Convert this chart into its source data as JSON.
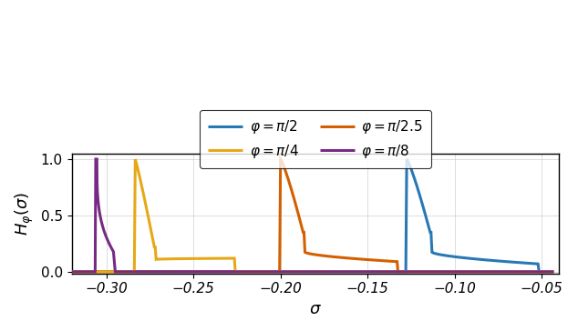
{
  "xlabel": "$\\sigma$",
  "ylabel": "$H_{\\varphi}(\\sigma)$",
  "xlim": [
    -0.32,
    -0.04
  ],
  "ylim": [
    -0.015,
    1.05
  ],
  "xticks": [
    -0.3,
    -0.25,
    -0.2,
    -0.15,
    -0.1,
    -0.05
  ],
  "yticks": [
    0,
    0.5,
    1
  ],
  "curves": [
    {
      "label": "$\\varphi = \\pi/2$",
      "color": "#2878b5",
      "linewidth": 2.2
    },
    {
      "label": "$\\varphi = \\pi/2.5$",
      "color": "#d45f00",
      "linewidth": 2.2
    },
    {
      "label": "$\\varphi = \\pi/4$",
      "color": "#e6a817",
      "linewidth": 2.2
    },
    {
      "label": "$\\varphi = \\pi/8$",
      "color": "#762a83",
      "linewidth": 2.2
    }
  ],
  "background_color": "#ffffff",
  "figsize": [
    6.34,
    3.64
  ],
  "dpi": 100
}
